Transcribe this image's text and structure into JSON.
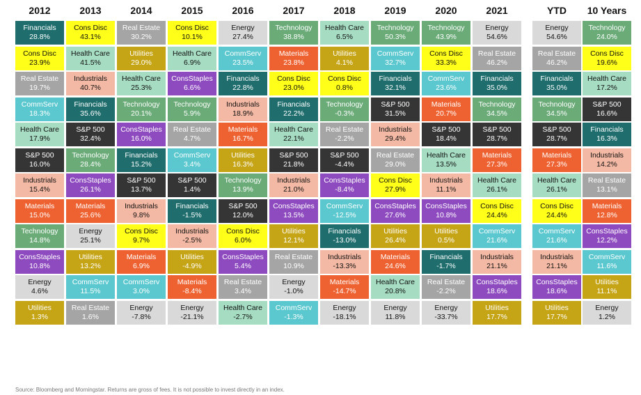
{
  "source_note": "Source: Bloomberg and Morningstar. Returns are gross of fees. It is not possible to invest directly in an index.",
  "sector_colors": {
    "Financials": "#1f6d6d",
    "Cons Disc": "#ffff19",
    "Real Estate": "#a5a5a5",
    "Energy": "#d9d9d9",
    "Technology": "#6aab78",
    "Health Care": "#a6dcc2",
    "CommServ": "#5bc8cf",
    "Materials": "#ee6231",
    "Utilities": "#c5a416",
    "Industrials": "#f4b9a4",
    "ConsStaples": "#8e4bbf",
    "S&P 500": "#353535"
  },
  "text_colors": {
    "Financials": "#ffffff",
    "Cons Disc": "#111111",
    "Real Estate": "#ffffff",
    "Energy": "#111111",
    "Technology": "#ffffff",
    "Health Care": "#111111",
    "CommServ": "#ffffff",
    "Materials": "#ffffff",
    "Utilities": "#ffffff",
    "Industrials": "#111111",
    "ConsStaples": "#ffffff",
    "S&P 500": "#ffffff"
  },
  "chart_data": {
    "type": "table",
    "columns": [
      {
        "year": "2012",
        "cells": [
          {
            "sector": "Financials",
            "ret": "28.8%"
          },
          {
            "sector": "Cons Disc",
            "ret": "23.9%"
          },
          {
            "sector": "Real Estate",
            "ret": "19.7%"
          },
          {
            "sector": "CommServ",
            "ret": "18.3%"
          },
          {
            "sector": "Health Care",
            "ret": "17.9%"
          },
          {
            "sector": "S&P 500",
            "ret": "16.0%"
          },
          {
            "sector": "Industrials",
            "ret": "15.4%"
          },
          {
            "sector": "Materials",
            "ret": "15.0%"
          },
          {
            "sector": "Technology",
            "ret": "14.8%"
          },
          {
            "sector": "ConsStaples",
            "ret": "10.8%"
          },
          {
            "sector": "Energy",
            "ret": "4.6%"
          },
          {
            "sector": "Utilities",
            "ret": "1.3%"
          }
        ]
      },
      {
        "year": "2013",
        "cells": [
          {
            "sector": "Cons Disc",
            "ret": "43.1%"
          },
          {
            "sector": "Health Care",
            "ret": "41.5%"
          },
          {
            "sector": "Industrials",
            "ret": "40.7%"
          },
          {
            "sector": "Financials",
            "ret": "35.6%"
          },
          {
            "sector": "S&P 500",
            "ret": "32.4%"
          },
          {
            "sector": "Technology",
            "ret": "28.4%"
          },
          {
            "sector": "ConsStaples",
            "ret": "26.1%"
          },
          {
            "sector": "Materials",
            "ret": "25.6%"
          },
          {
            "sector": "Energy",
            "ret": "25.1%"
          },
          {
            "sector": "Utilities",
            "ret": "13.2%"
          },
          {
            "sector": "CommServ",
            "ret": "11.5%"
          },
          {
            "sector": "Real Estate",
            "ret": "1.6%"
          }
        ]
      },
      {
        "year": "2014",
        "cells": [
          {
            "sector": "Real Estate",
            "ret": "30.2%"
          },
          {
            "sector": "Utilities",
            "ret": "29.0%"
          },
          {
            "sector": "Health Care",
            "ret": "25.3%"
          },
          {
            "sector": "Technology",
            "ret": "20.1%"
          },
          {
            "sector": "ConsStaples",
            "ret": "16.0%"
          },
          {
            "sector": "Financials",
            "ret": "15.2%"
          },
          {
            "sector": "S&P 500",
            "ret": "13.7%"
          },
          {
            "sector": "Industrials",
            "ret": "9.8%"
          },
          {
            "sector": "Cons Disc",
            "ret": "9.7%"
          },
          {
            "sector": "Materials",
            "ret": "6.9%"
          },
          {
            "sector": "CommServ",
            "ret": "3.0%"
          },
          {
            "sector": "Energy",
            "ret": "-7.8%"
          }
        ]
      },
      {
        "year": "2015",
        "cells": [
          {
            "sector": "Cons Disc",
            "ret": "10.1%"
          },
          {
            "sector": "Health Care",
            "ret": "6.9%"
          },
          {
            "sector": "ConsStaples",
            "ret": "6.6%"
          },
          {
            "sector": "Technology",
            "ret": "5.9%"
          },
          {
            "sector": "Real Estate",
            "ret": "4.7%"
          },
          {
            "sector": "CommServ",
            "ret": "3.4%"
          },
          {
            "sector": "S&P 500",
            "ret": "1.4%"
          },
          {
            "sector": "Financials",
            "ret": "-1.5%"
          },
          {
            "sector": "Industrials",
            "ret": "-2.5%"
          },
          {
            "sector": "Utilities",
            "ret": "-4.9%"
          },
          {
            "sector": "Materials",
            "ret": "-8.4%"
          },
          {
            "sector": "Energy",
            "ret": "-21.1%"
          }
        ]
      },
      {
        "year": "2016",
        "cells": [
          {
            "sector": "Energy",
            "ret": "27.4%"
          },
          {
            "sector": "CommServ",
            "ret": "23.5%"
          },
          {
            "sector": "Financials",
            "ret": "22.8%"
          },
          {
            "sector": "Industrials",
            "ret": "18.9%"
          },
          {
            "sector": "Materials",
            "ret": "16.7%"
          },
          {
            "sector": "Utilities",
            "ret": "16.3%"
          },
          {
            "sector": "Technology",
            "ret": "13.9%"
          },
          {
            "sector": "S&P 500",
            "ret": "12.0%"
          },
          {
            "sector": "Cons Disc",
            "ret": "6.0%"
          },
          {
            "sector": "ConsStaples",
            "ret": "5.4%"
          },
          {
            "sector": "Real Estate",
            "ret": "3.4%"
          },
          {
            "sector": "Health Care",
            "ret": "-2.7%"
          }
        ]
      },
      {
        "year": "2017",
        "cells": [
          {
            "sector": "Technology",
            "ret": "38.8%"
          },
          {
            "sector": "Materials",
            "ret": "23.8%"
          },
          {
            "sector": "Cons Disc",
            "ret": "23.0%"
          },
          {
            "sector": "Financials",
            "ret": "22.2%"
          },
          {
            "sector": "Health Care",
            "ret": "22.1%"
          },
          {
            "sector": "S&P 500",
            "ret": "21.8%"
          },
          {
            "sector": "Industrials",
            "ret": "21.0%"
          },
          {
            "sector": "ConsStaples",
            "ret": "13.5%"
          },
          {
            "sector": "Utilities",
            "ret": "12.1%"
          },
          {
            "sector": "Real Estate",
            "ret": "10.9%"
          },
          {
            "sector": "Energy",
            "ret": "-1.0%"
          },
          {
            "sector": "CommServ",
            "ret": "-1.3%"
          }
        ]
      },
      {
        "year": "2018",
        "cells": [
          {
            "sector": "Health Care",
            "ret": "6.5%"
          },
          {
            "sector": "Utilities",
            "ret": "4.1%"
          },
          {
            "sector": "Cons Disc",
            "ret": "0.8%"
          },
          {
            "sector": "Technology",
            "ret": "-0.3%"
          },
          {
            "sector": "Real Estate",
            "ret": "-2.2%"
          },
          {
            "sector": "S&P 500",
            "ret": "-4.4%"
          },
          {
            "sector": "ConsStaples",
            "ret": "-8.4%"
          },
          {
            "sector": "CommServ",
            "ret": "-12.5%"
          },
          {
            "sector": "Financials",
            "ret": "-13.0%"
          },
          {
            "sector": "Industrials",
            "ret": "-13.3%"
          },
          {
            "sector": "Materials",
            "ret": "-14.7%"
          },
          {
            "sector": "Energy",
            "ret": "-18.1%"
          }
        ]
      },
      {
        "year": "2019",
        "cells": [
          {
            "sector": "Technology",
            "ret": "50.3%"
          },
          {
            "sector": "CommServ",
            "ret": "32.7%"
          },
          {
            "sector": "Financials",
            "ret": "32.1%"
          },
          {
            "sector": "S&P 500",
            "ret": "31.5%"
          },
          {
            "sector": "Industrials",
            "ret": "29.4%"
          },
          {
            "sector": "Real Estate",
            "ret": "29.0%"
          },
          {
            "sector": "Cons Disc",
            "ret": "27.9%"
          },
          {
            "sector": "ConsStaples",
            "ret": "27.6%"
          },
          {
            "sector": "Utilities",
            "ret": "26.4%"
          },
          {
            "sector": "Materials",
            "ret": "24.6%"
          },
          {
            "sector": "Health Care",
            "ret": "20.8%"
          },
          {
            "sector": "Energy",
            "ret": "11.8%"
          }
        ]
      },
      {
        "year": "2020",
        "cells": [
          {
            "sector": "Technology",
            "ret": "43.9%"
          },
          {
            "sector": "Cons Disc",
            "ret": "33.3%"
          },
          {
            "sector": "CommServ",
            "ret": "23.6%"
          },
          {
            "sector": "Materials",
            "ret": "20.7%"
          },
          {
            "sector": "S&P 500",
            "ret": "18.4%"
          },
          {
            "sector": "Health Care",
            "ret": "13.5%"
          },
          {
            "sector": "Industrials",
            "ret": "11.1%"
          },
          {
            "sector": "ConsStaples",
            "ret": "10.8%"
          },
          {
            "sector": "Utilities",
            "ret": "0.5%"
          },
          {
            "sector": "Financials",
            "ret": "-1.7%"
          },
          {
            "sector": "Real Estate",
            "ret": "-2.2%"
          },
          {
            "sector": "Energy",
            "ret": "-33.7%"
          }
        ]
      },
      {
        "year": "2021",
        "cells": [
          {
            "sector": "Energy",
            "ret": "54.6%"
          },
          {
            "sector": "Real Estate",
            "ret": "46.2%"
          },
          {
            "sector": "Financials",
            "ret": "35.0%"
          },
          {
            "sector": "Technology",
            "ret": "34.5%"
          },
          {
            "sector": "S&P 500",
            "ret": "28.7%"
          },
          {
            "sector": "Materials",
            "ret": "27.3%"
          },
          {
            "sector": "Health Care",
            "ret": "26.1%"
          },
          {
            "sector": "Cons Disc",
            "ret": "24.4%"
          },
          {
            "sector": "CommServ",
            "ret": "21.6%"
          },
          {
            "sector": "Industrials",
            "ret": "21.1%"
          },
          {
            "sector": "ConsStaples",
            "ret": "18.6%"
          },
          {
            "sector": "Utilities",
            "ret": "17.7%"
          }
        ]
      },
      {
        "year": "YTD",
        "cells": [
          {
            "sector": "Energy",
            "ret": "54.6%"
          },
          {
            "sector": "Real Estate",
            "ret": "46.2%"
          },
          {
            "sector": "Financials",
            "ret": "35.0%"
          },
          {
            "sector": "Technology",
            "ret": "34.5%"
          },
          {
            "sector": "S&P 500",
            "ret": "28.7%"
          },
          {
            "sector": "Materials",
            "ret": "27.3%"
          },
          {
            "sector": "Health Care",
            "ret": "26.1%"
          },
          {
            "sector": "Cons Disc",
            "ret": "24.4%"
          },
          {
            "sector": "CommServ",
            "ret": "21.6%"
          },
          {
            "sector": "Industrials",
            "ret": "21.1%"
          },
          {
            "sector": "ConsStaples",
            "ret": "18.6%"
          },
          {
            "sector": "Utilities",
            "ret": "17.7%"
          }
        ]
      },
      {
        "year": "10 Years",
        "cells": [
          {
            "sector": "Technology",
            "ret": "24.0%"
          },
          {
            "sector": "Cons Disc",
            "ret": "19.6%"
          },
          {
            "sector": "Health Care",
            "ret": "17.2%"
          },
          {
            "sector": "S&P 500",
            "ret": "16.6%"
          },
          {
            "sector": "Financials",
            "ret": "16.3%"
          },
          {
            "sector": "Industrials",
            "ret": "14.2%"
          },
          {
            "sector": "Real Estate",
            "ret": "13.1%"
          },
          {
            "sector": "Materials",
            "ret": "12.8%"
          },
          {
            "sector": "ConsStaples",
            "ret": "12.2%"
          },
          {
            "sector": "CommServ",
            "ret": "11.6%"
          },
          {
            "sector": "Utilities",
            "ret": "11.1%"
          },
          {
            "sector": "Energy",
            "ret": "1.2%"
          }
        ]
      }
    ]
  }
}
